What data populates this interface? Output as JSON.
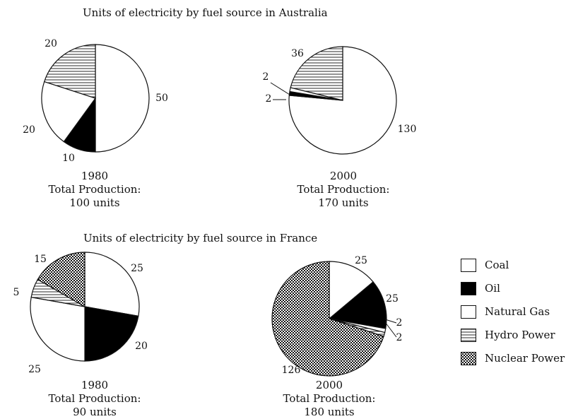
{
  "titles": {
    "australia": "Units of electricity by fuel source in Australia",
    "france": "Units of electricity by fuel source in France"
  },
  "legend": [
    {
      "label": "Coal",
      "fill": "coal",
      "icon": "coal-swatch"
    },
    {
      "label": "Oil",
      "fill": "oil",
      "icon": "oil-swatch"
    },
    {
      "label": "Natural Gas",
      "fill": "gas",
      "icon": "natural-gas-swatch"
    },
    {
      "label": "Hydro Power",
      "fill": "hydro",
      "icon": "hydro-power-swatch"
    },
    {
      "label": "Nuclear Power",
      "fill": "nuclear",
      "icon": "nuclear-power-swatch"
    }
  ],
  "colors": {
    "ink": "#111111",
    "background": "#ffffff",
    "oil": "#000000"
  },
  "chart_data": [
    {
      "type": "pie",
      "country": "Australia",
      "year": "1980",
      "total_label": "Total Production:",
      "total": "100 units",
      "slices": [
        {
          "name": "Coal",
          "fill": "coal",
          "value": 50,
          "label": "50"
        },
        {
          "name": "Oil",
          "fill": "oil",
          "value": 10,
          "label": "10"
        },
        {
          "name": "Natural Gas",
          "fill": "gas",
          "value": 20,
          "label": "20"
        },
        {
          "name": "Hydro Power",
          "fill": "hydro",
          "value": 20,
          "label": "20"
        }
      ]
    },
    {
      "type": "pie",
      "country": "Australia",
      "year": "2000",
      "total_label": "Total Production:",
      "total": "170 units",
      "slices": [
        {
          "name": "Coal",
          "fill": "coal",
          "value": 130,
          "label": "130"
        },
        {
          "name": "Oil",
          "fill": "oil",
          "value": 2,
          "label": "2"
        },
        {
          "name": "Natural Gas",
          "fill": "gas",
          "value": 2,
          "label": "2"
        },
        {
          "name": "Hydro Power",
          "fill": "hydro",
          "value": 36,
          "label": "36"
        }
      ]
    },
    {
      "type": "pie",
      "country": "France",
      "year": "1980",
      "total_label": "Total Production:",
      "total": "90 units",
      "slices": [
        {
          "name": "Coal",
          "fill": "coal",
          "value": 25,
          "label": "25"
        },
        {
          "name": "Oil",
          "fill": "oil",
          "value": 20,
          "label": "20"
        },
        {
          "name": "Natural Gas",
          "fill": "gas",
          "value": 25,
          "label": "25"
        },
        {
          "name": "Hydro Power",
          "fill": "hydro",
          "value": 5,
          "label": "5"
        },
        {
          "name": "Nuclear Power",
          "fill": "nuclear",
          "value": 15,
          "label": "15"
        }
      ]
    },
    {
      "type": "pie",
      "country": "France",
      "year": "2000",
      "total_label": "Total Production:",
      "total": "180 units",
      "slices": [
        {
          "name": "Coal",
          "fill": "coal",
          "value": 25,
          "label": "25"
        },
        {
          "name": "Oil",
          "fill": "oil",
          "value": 25,
          "label": "25"
        },
        {
          "name": "Natural Gas",
          "fill": "gas",
          "value": 2,
          "label": "2"
        },
        {
          "name": "Hydro Power",
          "fill": "hydro",
          "value": 2,
          "label": "2"
        },
        {
          "name": "Nuclear Power",
          "fill": "nuclear",
          "value": 126,
          "label": "126"
        }
      ]
    }
  ]
}
